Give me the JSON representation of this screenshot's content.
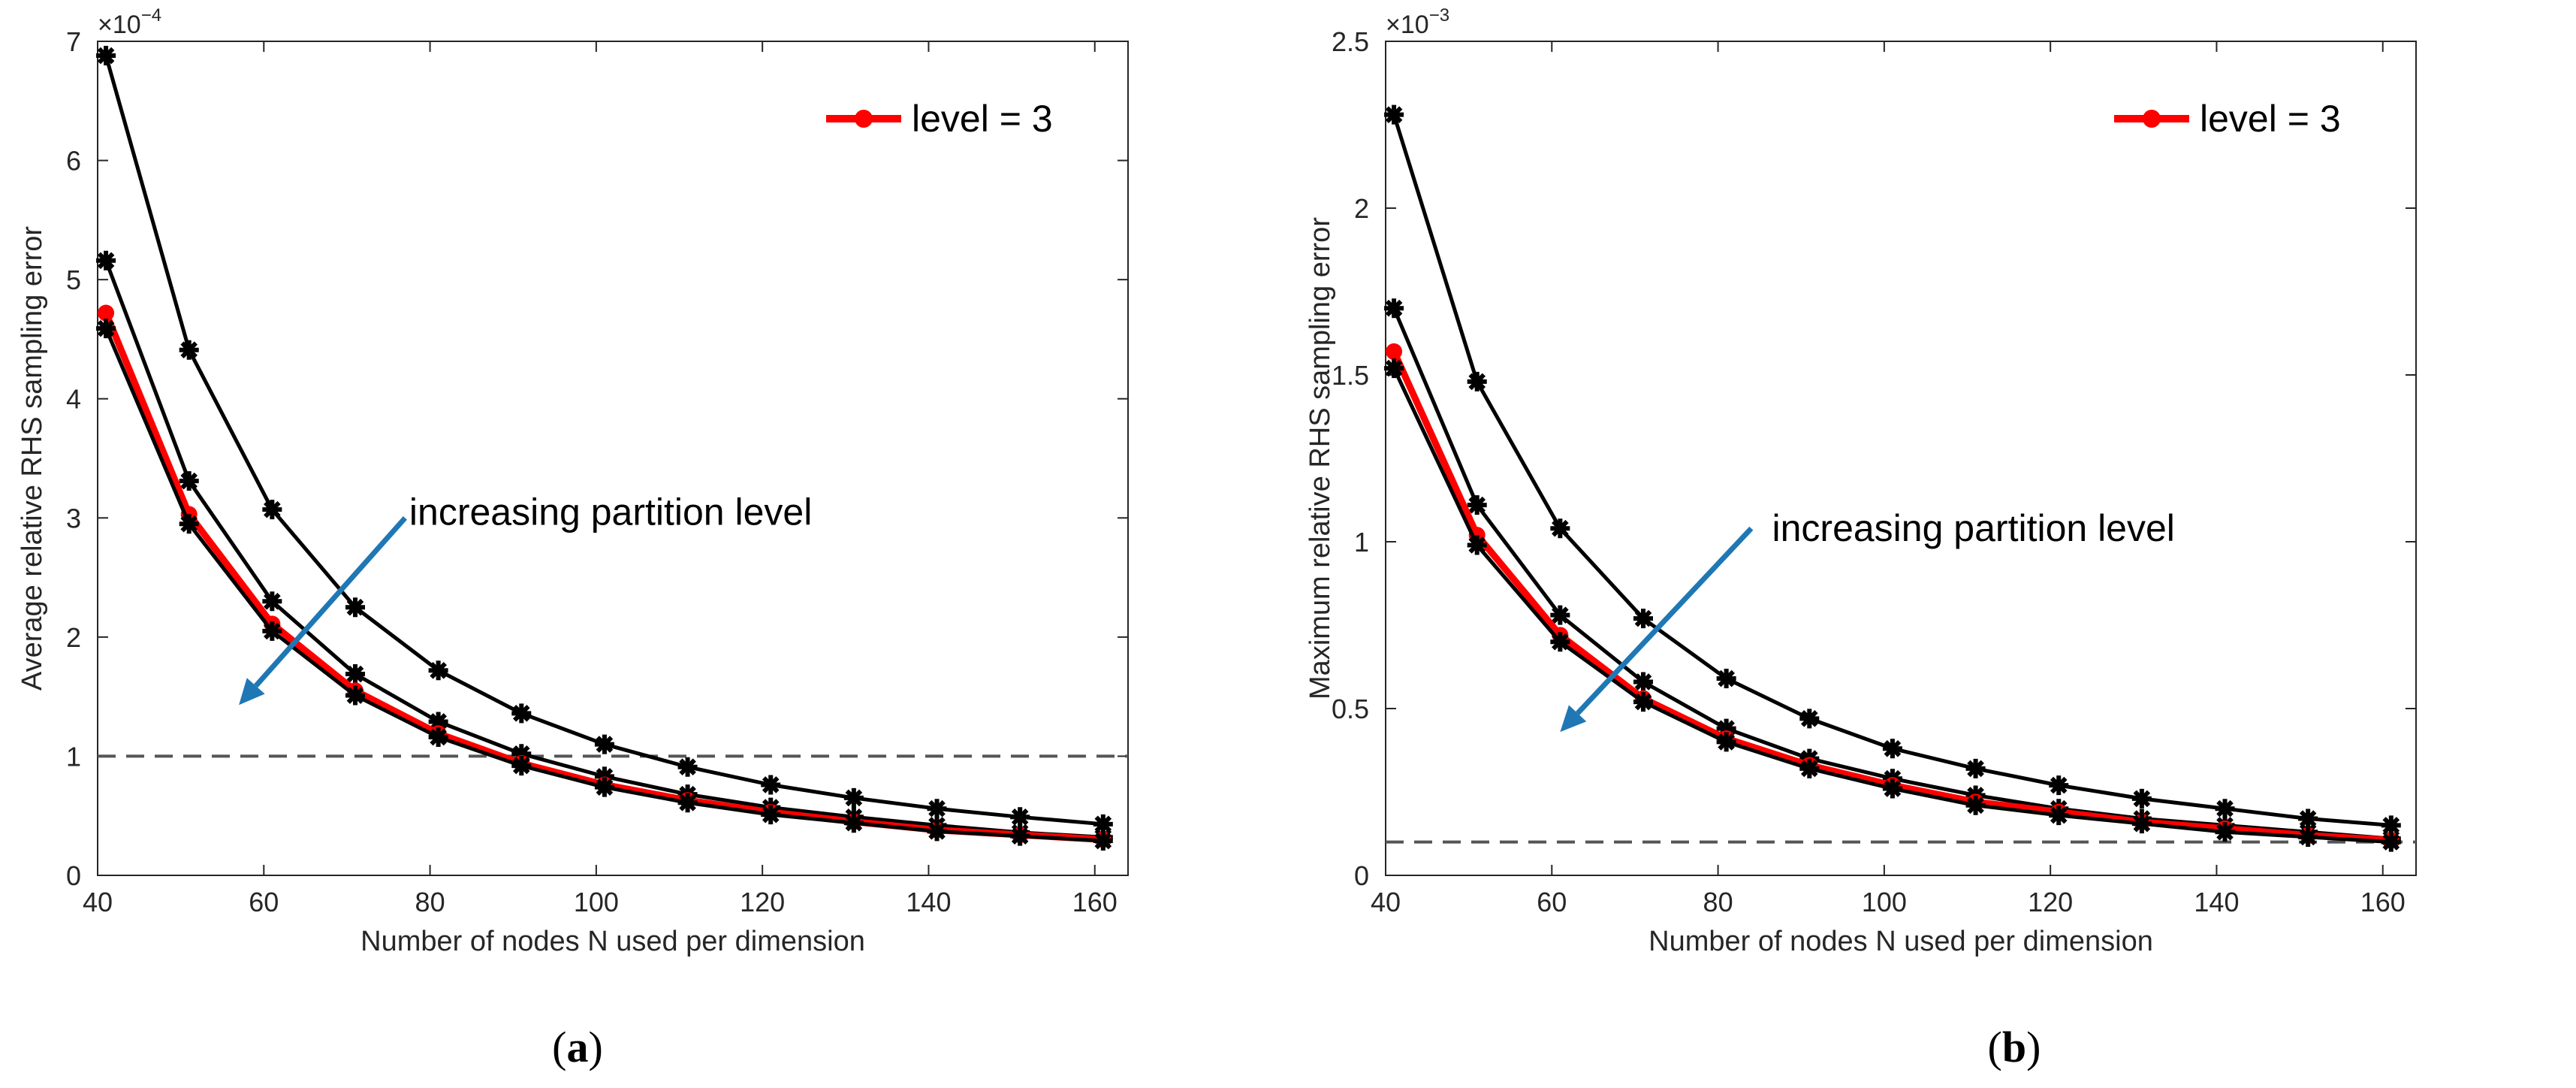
{
  "chart_data": [
    {
      "type": "line",
      "panel_label": "a",
      "xlabel": "Number of nodes N used per dimension",
      "ylabel": "Average relative RHS sampling error",
      "exponent_base": "×10",
      "exponent_power": "−4",
      "xlim": [
        40,
        164
      ],
      "ylim": [
        0,
        7
      ],
      "xticks": [
        40,
        60,
        80,
        100,
        120,
        140,
        160
      ],
      "yticks": [
        0,
        1,
        2,
        3,
        4,
        5,
        6,
        7
      ],
      "x": [
        41,
        51,
        61,
        71,
        81,
        91,
        101,
        111,
        121,
        131,
        141,
        151,
        161
      ],
      "series": [
        {
          "color": "#000000",
          "highlight": false,
          "values": [
            6.88,
            4.41,
            3.07,
            2.25,
            1.72,
            1.36,
            1.1,
            0.91,
            0.76,
            0.65,
            0.56,
            0.49,
            0.43
          ]
        },
        {
          "color": "#000000",
          "highlight": false,
          "values": [
            5.16,
            3.31,
            2.3,
            1.69,
            1.29,
            1.02,
            0.83,
            0.68,
            0.57,
            0.49,
            0.42,
            0.36,
            0.32
          ]
        },
        {
          "name": "level = 3",
          "color": "#ff0000",
          "highlight": true,
          "values": [
            4.72,
            3.03,
            2.11,
            1.55,
            1.19,
            0.94,
            0.76,
            0.63,
            0.53,
            0.45,
            0.38,
            0.34,
            0.3
          ]
        },
        {
          "color": "#000000",
          "highlight": false,
          "values": [
            4.59,
            2.95,
            2.05,
            1.51,
            1.16,
            0.92,
            0.74,
            0.61,
            0.51,
            0.44,
            0.37,
            0.33,
            0.29
          ]
        }
      ],
      "reference_line": {
        "y": 1,
        "style": "dashed",
        "color": "#555555"
      },
      "legend": {
        "label": "level = 3",
        "placement": "top-right"
      },
      "annotation": {
        "text": "increasing partition level",
        "arrow_from": [
          77,
          3.0
        ],
        "arrow_to": [
          57,
          1.43
        ],
        "text_at": [
          77.5,
          3.05
        ],
        "arrow_color": "#1f77b4"
      }
    },
    {
      "type": "line",
      "panel_label": "b",
      "xlabel": "Number of nodes N used per dimension",
      "ylabel": "Maximum relative RHS sampling error",
      "exponent_base": "×10",
      "exponent_power": "−3",
      "xlim": [
        40,
        164
      ],
      "ylim": [
        0,
        2.5
      ],
      "xticks": [
        40,
        60,
        80,
        100,
        120,
        140,
        160
      ],
      "yticks": [
        0,
        0.5,
        1,
        1.5,
        2,
        2.5
      ],
      "x": [
        41,
        51,
        61,
        71,
        81,
        91,
        101,
        111,
        121,
        131,
        141,
        151,
        161
      ],
      "series": [
        {
          "color": "#000000",
          "highlight": false,
          "values": [
            2.28,
            1.48,
            1.04,
            0.77,
            0.59,
            0.47,
            0.38,
            0.32,
            0.27,
            0.23,
            0.2,
            0.17,
            0.15
          ]
        },
        {
          "color": "#000000",
          "highlight": false,
          "values": [
            1.7,
            1.11,
            0.78,
            0.58,
            0.44,
            0.35,
            0.29,
            0.24,
            0.2,
            0.17,
            0.15,
            0.13,
            0.11
          ]
        },
        {
          "name": "level = 3",
          "color": "#ff0000",
          "highlight": true,
          "values": [
            1.57,
            1.02,
            0.72,
            0.53,
            0.41,
            0.33,
            0.27,
            0.22,
            0.19,
            0.16,
            0.14,
            0.12,
            0.105
          ]
        },
        {
          "color": "#000000",
          "highlight": false,
          "values": [
            1.52,
            0.99,
            0.7,
            0.52,
            0.4,
            0.32,
            0.26,
            0.21,
            0.18,
            0.155,
            0.13,
            0.115,
            0.1
          ]
        }
      ],
      "reference_line": {
        "y": 0.1,
        "style": "dashed",
        "color": "#555555"
      },
      "legend": {
        "label": "level = 3",
        "placement": "top-right"
      },
      "annotation": {
        "text": "increasing partition level",
        "arrow_from": [
          84,
          1.04
        ],
        "arrow_to": [
          61,
          0.43
        ],
        "text_at": [
          86.5,
          1.04
        ],
        "arrow_color": "#1f77b4"
      }
    }
  ],
  "captions": {
    "a": "a",
    "b": "b"
  }
}
